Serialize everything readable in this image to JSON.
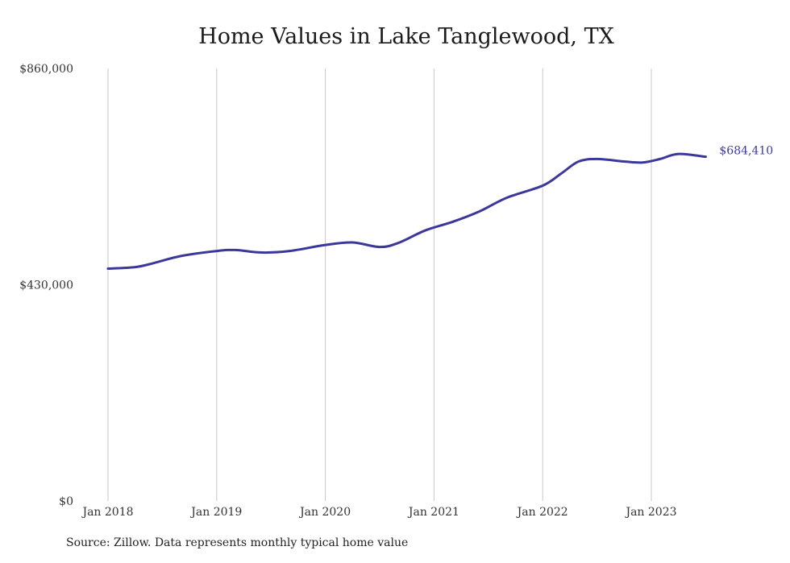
{
  "chart_data": {
    "type": "line",
    "title": "Home Values in Lake Tanglewood, TX",
    "source": "Source: Zillow. Data represents monthly typical home value",
    "ylim": [
      0,
      860000
    ],
    "y_ticks": [
      {
        "value": 0,
        "label": "$0"
      },
      {
        "value": 430000,
        "label": "$430,000"
      },
      {
        "value": 860000,
        "label": "$860,000"
      }
    ],
    "x_ticks": [
      {
        "value": 2018.0,
        "label": "Jan 2018"
      },
      {
        "value": 2019.0,
        "label": "Jan 2019"
      },
      {
        "value": 2020.0,
        "label": "Jan 2020"
      },
      {
        "value": 2021.0,
        "label": "Jan 2021"
      },
      {
        "value": 2022.0,
        "label": "Jan 2022"
      },
      {
        "value": 2023.0,
        "label": "Jan 2023"
      }
    ],
    "xlim": [
      2018.0,
      2023.5
    ],
    "grid": "vertical",
    "series": [
      {
        "color": "#3b3899",
        "end_label": "$684,410",
        "points": [
          {
            "x": 2018.0,
            "y": 462000
          },
          {
            "x": 2018.25,
            "y": 465000
          },
          {
            "x": 2018.42,
            "y": 473000
          },
          {
            "x": 2018.67,
            "y": 487000
          },
          {
            "x": 2019.0,
            "y": 497000
          },
          {
            "x": 2019.17,
            "y": 499000
          },
          {
            "x": 2019.42,
            "y": 494000
          },
          {
            "x": 2019.67,
            "y": 497000
          },
          {
            "x": 2020.0,
            "y": 509000
          },
          {
            "x": 2020.25,
            "y": 514000
          },
          {
            "x": 2020.5,
            "y": 505000
          },
          {
            "x": 2020.67,
            "y": 513000
          },
          {
            "x": 2020.92,
            "y": 538000
          },
          {
            "x": 2021.17,
            "y": 555000
          },
          {
            "x": 2021.42,
            "y": 576000
          },
          {
            "x": 2021.67,
            "y": 603000
          },
          {
            "x": 2022.0,
            "y": 627000
          },
          {
            "x": 2022.17,
            "y": 651000
          },
          {
            "x": 2022.33,
            "y": 675000
          },
          {
            "x": 2022.5,
            "y": 680000
          },
          {
            "x": 2022.75,
            "y": 675000
          },
          {
            "x": 2022.92,
            "y": 673000
          },
          {
            "x": 2023.08,
            "y": 680000
          },
          {
            "x": 2023.25,
            "y": 690000
          },
          {
            "x": 2023.5,
            "y": 684410
          }
        ]
      }
    ]
  }
}
